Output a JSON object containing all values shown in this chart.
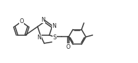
{
  "bg_color": "#ffffff",
  "line_color": "#3a3a3a",
  "line_width": 1.1,
  "figsize": [
    2.02,
    0.93
  ],
  "dpi": 100,
  "xlim": [
    0,
    10.5
  ],
  "ylim": [
    0.5,
    5.5
  ]
}
